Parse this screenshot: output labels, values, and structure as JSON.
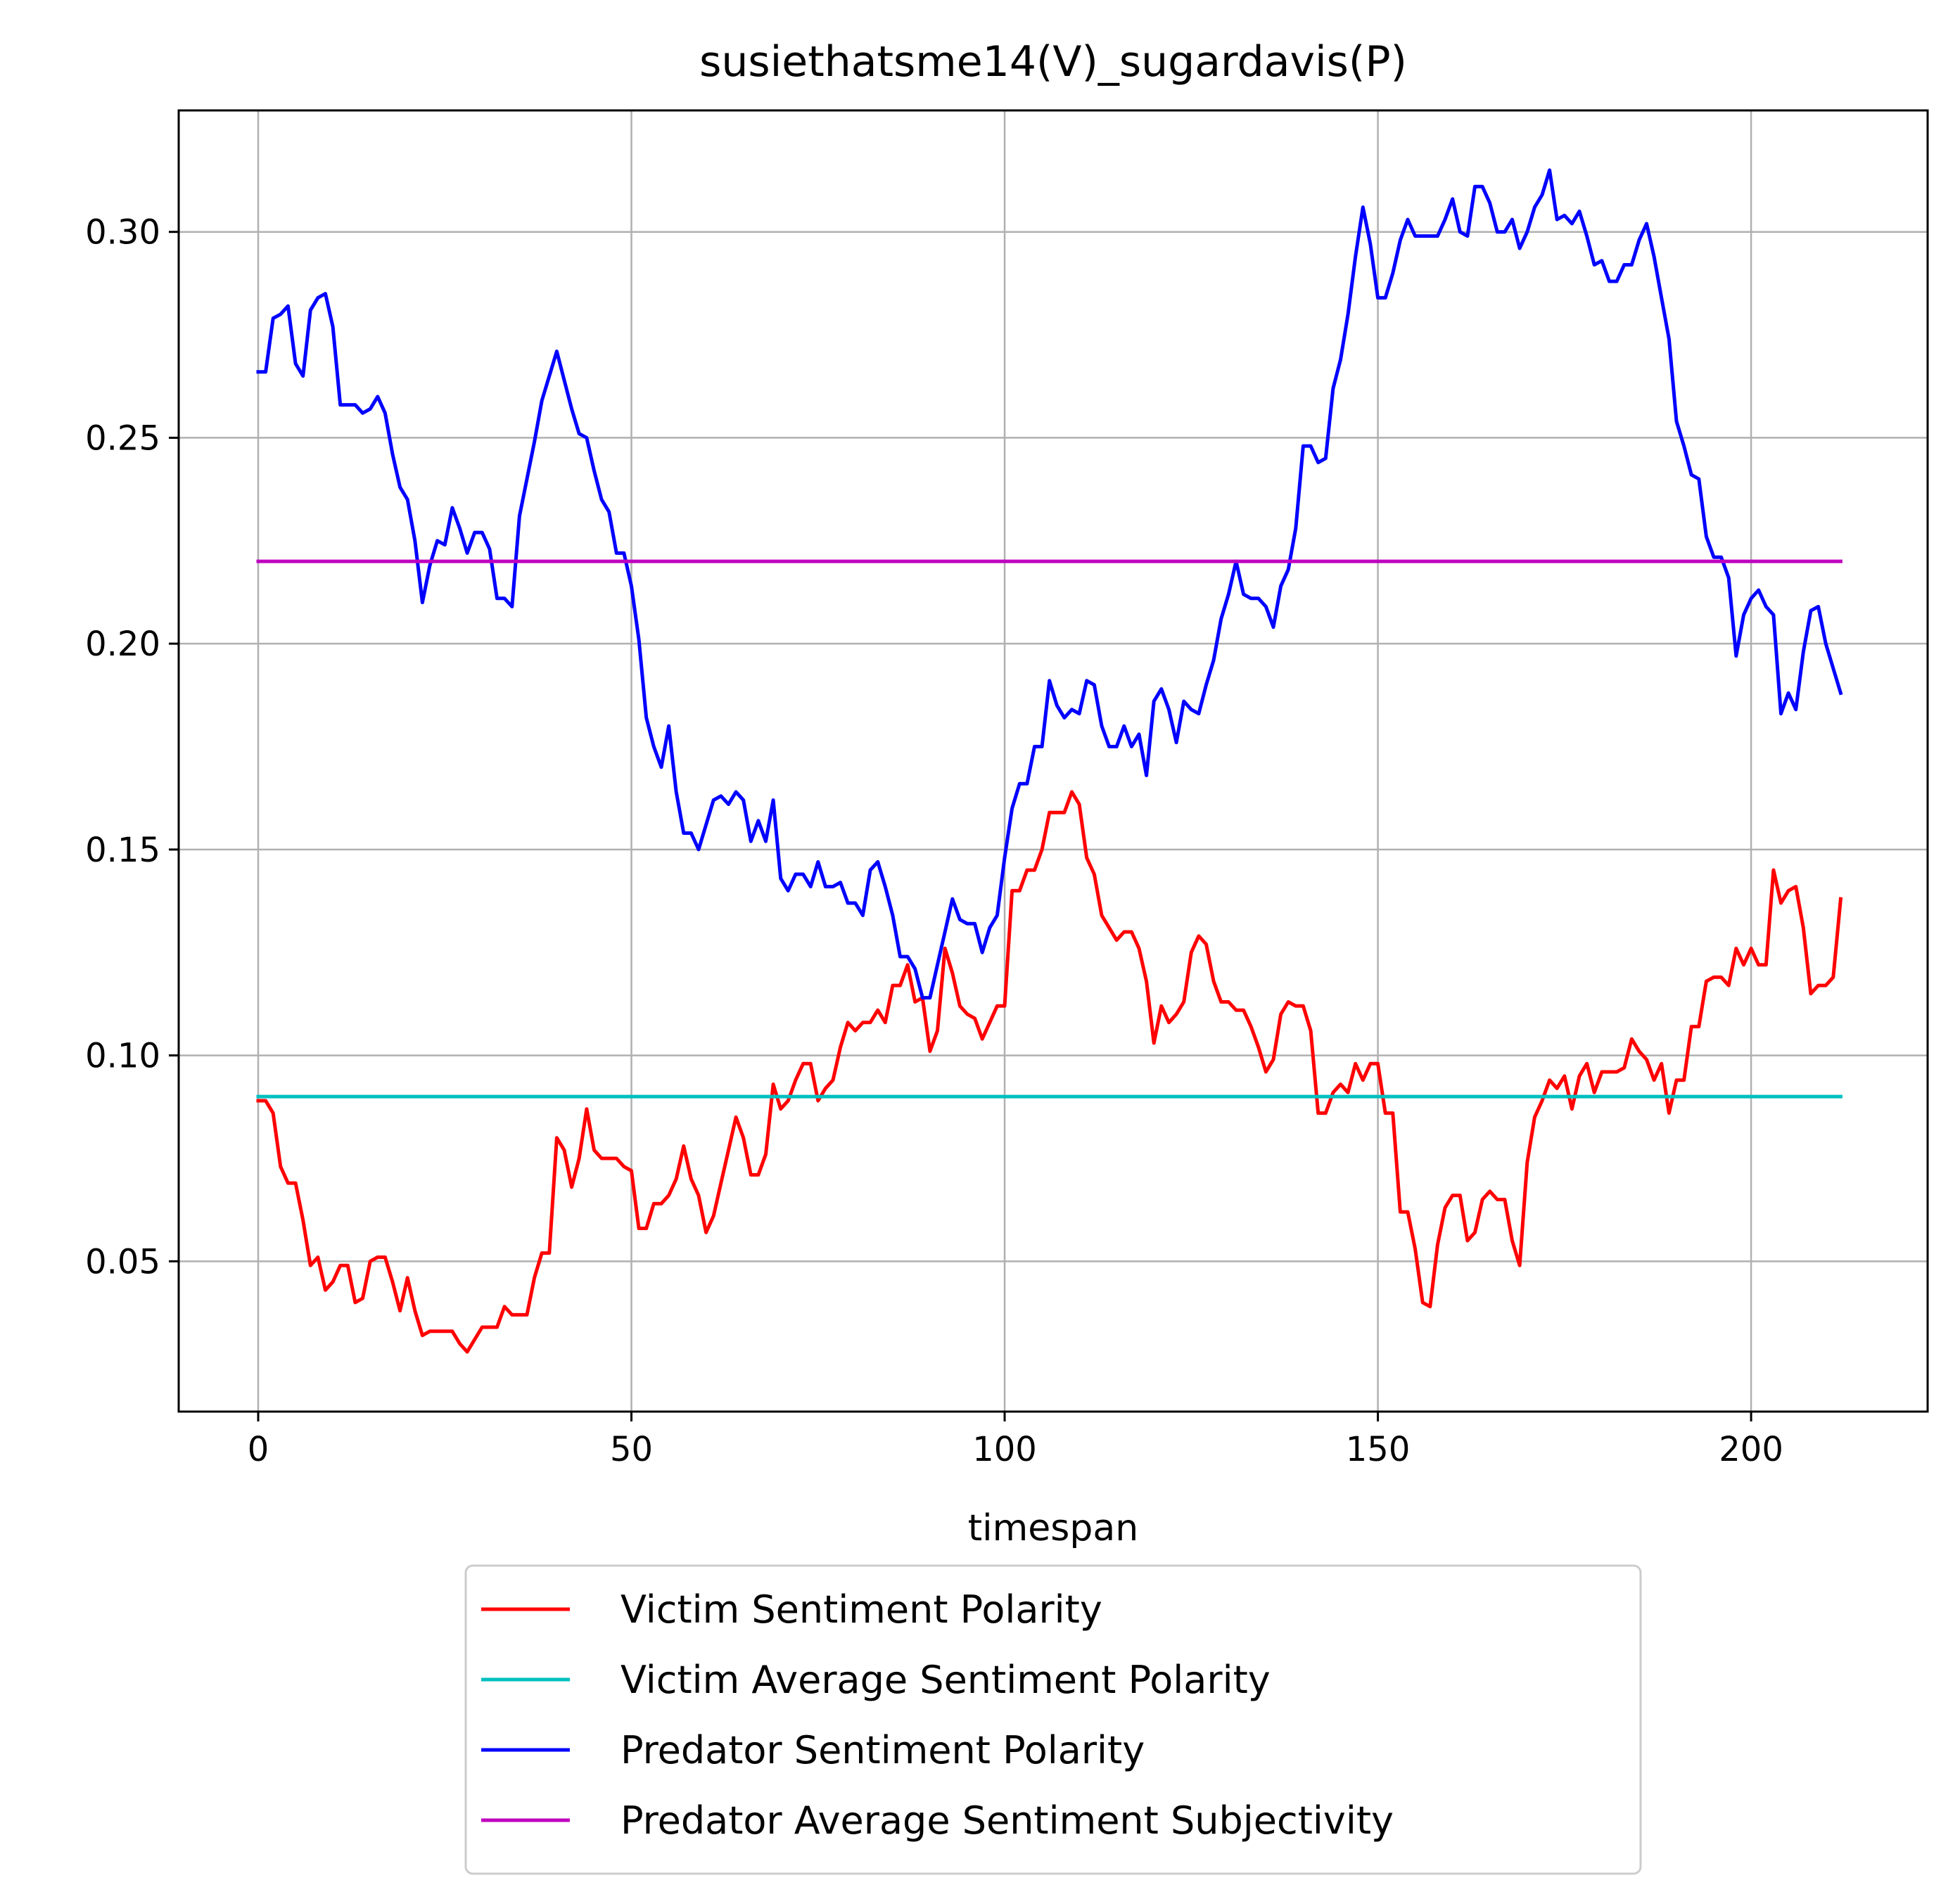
{
  "chart_data": {
    "type": "line",
    "title": "susiethatsme14(V)_sugardavis(P)",
    "xlabel": "timespan",
    "ylabel": "",
    "xlim": [
      -10.65,
      223.65
    ],
    "ylim": [
      0.0135,
      0.3295
    ],
    "xticks": [
      {
        "value": 0,
        "label": "0"
      },
      {
        "value": 50,
        "label": "50"
      },
      {
        "value": 100,
        "label": "100"
      },
      {
        "value": 150,
        "label": "150"
      },
      {
        "value": 200,
        "label": "200"
      }
    ],
    "yticks": [
      {
        "value": 0.05,
        "label": "0.05"
      },
      {
        "value": 0.1,
        "label": "0.10"
      },
      {
        "value": 0.15,
        "label": "0.15"
      },
      {
        "value": 0.2,
        "label": "0.20"
      },
      {
        "value": 0.25,
        "label": "0.25"
      },
      {
        "value": 0.3,
        "label": "0.30"
      }
    ],
    "grid": true,
    "legend_position": "below",
    "series": [
      {
        "name": "Victim Sentiment Polarity",
        "color": "#ff0000",
        "x": [
          0,
          1,
          2,
          3,
          4,
          5,
          6,
          7,
          8,
          9,
          10,
          11,
          12,
          13,
          14,
          15,
          16,
          17,
          18,
          19,
          20,
          21,
          22,
          23,
          24,
          25,
          26,
          27,
          28,
          29,
          30,
          31,
          32,
          33,
          34,
          35,
          36,
          37,
          38,
          39,
          40,
          41,
          42,
          43,
          44,
          45,
          46,
          47,
          48,
          49,
          50,
          51,
          52,
          53,
          54,
          55,
          56,
          57,
          58,
          59,
          60,
          61,
          62,
          63,
          64,
          65,
          66,
          67,
          68,
          69,
          70,
          71,
          72,
          73,
          74,
          75,
          76,
          77,
          78,
          79,
          80,
          81,
          82,
          83,
          84,
          85,
          86,
          87,
          88,
          89,
          90,
          91,
          92,
          93,
          94,
          95,
          96,
          97,
          98,
          99,
          100,
          101,
          102,
          103,
          104,
          105,
          106,
          107,
          108,
          109,
          110,
          111,
          112,
          113,
          114,
          115,
          116,
          117,
          118,
          119,
          120,
          121,
          122,
          123,
          124,
          125,
          126,
          127,
          128,
          129,
          130,
          131,
          132,
          133,
          134,
          135,
          136,
          137,
          138,
          139,
          140,
          141,
          142,
          143,
          144,
          145,
          146,
          147,
          148,
          149,
          150,
          151,
          152,
          153,
          154,
          155,
          156,
          157,
          158,
          159,
          160,
          161,
          162,
          163,
          164,
          165,
          166,
          167,
          168,
          169,
          170,
          171,
          172,
          173,
          174,
          175,
          176,
          177,
          178,
          179,
          180,
          181,
          182,
          183,
          184,
          185,
          186,
          187,
          188,
          189,
          190,
          191,
          192,
          193,
          194,
          195,
          196,
          197,
          198,
          199,
          200,
          201,
          202,
          203,
          204,
          205,
          206,
          207,
          208,
          209,
          210,
          211,
          212
        ],
        "values": [
          0.089,
          0.089,
          0.086,
          0.073,
          0.069,
          0.069,
          0.06,
          0.049,
          0.051,
          0.043,
          0.045,
          0.049,
          0.049,
          0.04,
          0.041,
          0.05,
          0.051,
          0.051,
          0.045,
          0.038,
          0.046,
          0.038,
          0.032,
          0.033,
          0.033,
          0.033,
          0.033,
          0.03,
          0.028,
          0.031,
          0.034,
          0.034,
          0.034,
          0.039,
          0.037,
          0.037,
          0.037,
          0.046,
          0.052,
          0.052,
          0.08,
          0.077,
          0.068,
          0.075,
          0.087,
          0.077,
          0.075,
          0.075,
          0.075,
          0.073,
          0.072,
          0.058,
          0.058,
          0.064,
          0.064,
          0.066,
          0.07,
          0.078,
          0.07,
          0.066,
          0.057,
          0.061,
          0.069,
          0.077,
          0.085,
          0.08,
          0.071,
          0.071,
          0.076,
          0.093,
          0.087,
          0.089,
          0.094,
          0.098,
          0.098,
          0.089,
          0.092,
          0.094,
          0.102,
          0.108,
          0.106,
          0.108,
          0.108,
          0.111,
          0.108,
          0.117,
          0.117,
          0.122,
          0.113,
          0.114,
          0.101,
          0.106,
          0.126,
          0.12,
          0.112,
          0.11,
          0.109,
          0.104,
          0.108,
          0.112,
          0.112,
          0.14,
          0.14,
          0.145,
          0.145,
          0.15,
          0.159,
          0.159,
          0.159,
          0.164,
          0.161,
          0.148,
          0.144,
          0.134,
          0.131,
          0.128,
          0.13,
          0.13,
          0.126,
          0.118,
          0.103,
          0.112,
          0.108,
          0.11,
          0.113,
          0.125,
          0.129,
          0.127,
          0.118,
          0.113,
          0.113,
          0.111,
          0.111,
          0.107,
          0.102,
          0.096,
          0.099,
          0.11,
          0.113,
          0.112,
          0.112,
          0.106,
          0.086,
          0.086,
          0.091,
          0.093,
          0.091,
          0.098,
          0.094,
          0.098,
          0.098,
          0.086,
          0.086,
          0.062,
          0.062,
          0.053,
          0.04,
          0.039,
          0.054,
          0.063,
          0.066,
          0.066,
          0.055,
          0.057,
          0.065,
          0.067,
          0.065,
          0.065,
          0.055,
          0.049,
          0.074,
          0.085,
          0.089,
          0.094,
          0.092,
          0.095,
          0.087,
          0.095,
          0.098,
          0.091,
          0.096,
          0.096,
          0.096,
          0.097,
          0.104,
          0.101,
          0.099,
          0.094,
          0.098,
          0.086,
          0.094,
          0.094,
          0.107,
          0.107,
          0.118,
          0.119,
          0.119,
          0.117,
          0.126,
          0.122,
          0.126,
          0.122,
          0.122,
          0.145,
          0.137,
          0.14,
          0.141,
          0.131,
          0.115,
          0.117,
          0.117,
          0.119,
          0.138
        ]
      },
      {
        "name": "Victim Average Sentiment Polarity",
        "color": "#00bfbf",
        "x": [
          0,
          212
        ],
        "values": [
          0.09,
          0.09
        ]
      },
      {
        "name": "Predator Sentiment Polarity",
        "color": "#0000ff",
        "x": [
          0,
          1,
          2,
          3,
          4,
          5,
          6,
          7,
          8,
          9,
          10,
          11,
          12,
          13,
          14,
          15,
          16,
          17,
          18,
          19,
          20,
          21,
          22,
          23,
          24,
          25,
          26,
          27,
          28,
          29,
          30,
          31,
          32,
          33,
          34,
          35,
          36,
          37,
          38,
          39,
          40,
          41,
          42,
          43,
          44,
          45,
          46,
          47,
          48,
          49,
          50,
          51,
          52,
          53,
          54,
          55,
          56,
          57,
          58,
          59,
          60,
          61,
          62,
          63,
          64,
          65,
          66,
          67,
          68,
          69,
          70,
          71,
          72,
          73,
          74,
          75,
          76,
          77,
          78,
          79,
          80,
          81,
          82,
          83,
          84,
          85,
          86,
          87,
          88,
          89,
          90,
          91,
          92,
          93,
          94,
          95,
          96,
          97,
          98,
          99,
          100,
          101,
          102,
          103,
          104,
          105,
          106,
          107,
          108,
          109,
          110,
          111,
          112,
          113,
          114,
          115,
          116,
          117,
          118,
          119,
          120,
          121,
          122,
          123,
          124,
          125,
          126,
          127,
          128,
          129,
          130,
          131,
          132,
          133,
          134,
          135,
          136,
          137,
          138,
          139,
          140,
          141,
          142,
          143,
          144,
          145,
          146,
          147,
          148,
          149,
          150,
          151,
          152,
          153,
          154,
          155,
          156,
          157,
          158,
          159,
          160,
          161,
          162,
          163,
          164,
          165,
          166,
          167,
          168,
          169,
          170,
          171,
          172,
          173,
          174,
          175,
          176,
          177,
          178,
          179,
          180,
          181,
          182,
          183,
          184,
          185,
          186,
          187,
          188,
          189,
          190,
          191,
          192,
          193,
          194,
          195,
          196,
          197,
          198,
          199,
          200,
          201,
          202,
          203,
          204,
          205,
          206,
          207,
          208,
          209,
          210,
          211,
          212
        ],
        "values": [
          0.266,
          0.266,
          0.279,
          0.28,
          0.282,
          0.268,
          0.265,
          0.281,
          0.284,
          0.285,
          0.277,
          0.258,
          0.258,
          0.258,
          0.256,
          0.257,
          0.26,
          0.256,
          0.246,
          0.238,
          0.235,
          0.225,
          0.21,
          0.219,
          0.225,
          0.224,
          0.233,
          0.228,
          0.222,
          0.227,
          0.227,
          0.223,
          0.211,
          0.211,
          0.209,
          0.231,
          0.24,
          0.249,
          0.259,
          0.265,
          0.271,
          0.264,
          0.257,
          0.251,
          0.25,
          0.242,
          0.235,
          0.232,
          0.222,
          0.222,
          0.214,
          0.201,
          0.182,
          0.175,
          0.17,
          0.18,
          0.164,
          0.154,
          0.154,
          0.15,
          0.156,
          0.162,
          0.163,
          0.161,
          0.164,
          0.162,
          0.152,
          0.157,
          0.152,
          0.162,
          0.143,
          0.14,
          0.144,
          0.144,
          0.141,
          0.147,
          0.141,
          0.141,
          0.142,
          0.137,
          0.137,
          0.134,
          0.145,
          0.147,
          0.141,
          0.134,
          0.124,
          0.124,
          0.121,
          0.114,
          0.114,
          0.122,
          0.13,
          0.138,
          0.133,
          0.132,
          0.132,
          0.125,
          0.131,
          0.134,
          0.148,
          0.16,
          0.166,
          0.166,
          0.175,
          0.175,
          0.191,
          0.185,
          0.182,
          0.184,
          0.183,
          0.191,
          0.19,
          0.18,
          0.175,
          0.175,
          0.18,
          0.175,
          0.178,
          0.168,
          0.186,
          0.189,
          0.184,
          0.176,
          0.186,
          0.184,
          0.183,
          0.19,
          0.196,
          0.206,
          0.212,
          0.22,
          0.212,
          0.211,
          0.211,
          0.209,
          0.204,
          0.214,
          0.218,
          0.228,
          0.248,
          0.248,
          0.244,
          0.245,
          0.262,
          0.269,
          0.28,
          0.294,
          0.306,
          0.297,
          0.284,
          0.284,
          0.29,
          0.298,
          0.303,
          0.299,
          0.299,
          0.299,
          0.299,
          0.303,
          0.308,
          0.3,
          0.299,
          0.311,
          0.311,
          0.307,
          0.3,
          0.3,
          0.303,
          0.296,
          0.3,
          0.306,
          0.309,
          0.315,
          0.303,
          0.304,
          0.302,
          0.305,
          0.299,
          0.292,
          0.293,
          0.288,
          0.288,
          0.292,
          0.292,
          0.298,
          0.302,
          0.294,
          0.284,
          0.274,
          0.254,
          0.248,
          0.241,
          0.24,
          0.226,
          0.221,
          0.221,
          0.216,
          0.197,
          0.207,
          0.211,
          0.213,
          0.209,
          0.207,
          0.183,
          0.188,
          0.184,
          0.198,
          0.208,
          0.209,
          0.2,
          0.194,
          0.188
        ]
      },
      {
        "name": "Predator Average Sentiment Subjectivity",
        "color": "#bf00bf",
        "x": [
          0,
          212
        ],
        "values": [
          0.22,
          0.22
        ]
      }
    ]
  }
}
